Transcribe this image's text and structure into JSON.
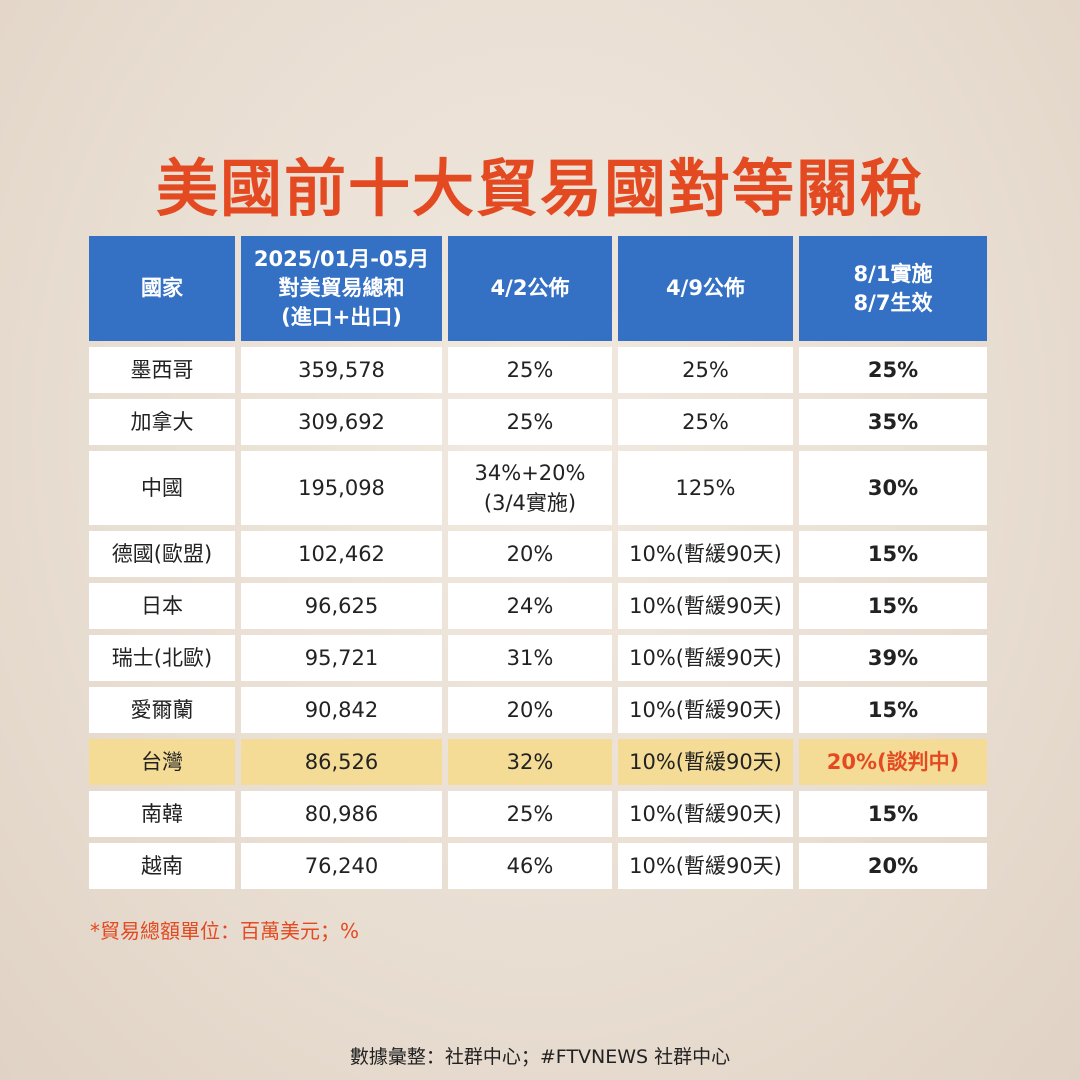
{
  "title": "美國前十大貿易國對等關稅",
  "chart_data": {
    "type": "table",
    "columns": [
      {
        "lines": [
          "國家"
        ]
      },
      {
        "lines": [
          "2025/01月-05月",
          "對美貿易總和",
          "(進口+出口)"
        ]
      },
      {
        "lines": [
          "4/2公佈"
        ]
      },
      {
        "lines": [
          "4/9公佈"
        ]
      },
      {
        "lines": [
          "8/1實施",
          "8/7生效"
        ]
      }
    ],
    "rows": [
      {
        "cells": [
          [
            "墨西哥"
          ],
          [
            "359,578"
          ],
          [
            "25%"
          ],
          [
            "25%"
          ],
          [
            "25%"
          ]
        ]
      },
      {
        "cells": [
          [
            "加拿大"
          ],
          [
            "309,692"
          ],
          [
            "25%"
          ],
          [
            "25%"
          ],
          [
            "35%"
          ]
        ]
      },
      {
        "cells": [
          [
            "中國"
          ],
          [
            "195,098"
          ],
          [
            "34%+20%",
            "(3/4實施)"
          ],
          [
            "125%"
          ],
          [
            "30%"
          ]
        ]
      },
      {
        "cells": [
          [
            "德國(歐盟)"
          ],
          [
            "102,462"
          ],
          [
            "20%"
          ],
          [
            "10%(暫緩90天)"
          ],
          [
            "15%"
          ]
        ]
      },
      {
        "cells": [
          [
            "日本"
          ],
          [
            "96,625"
          ],
          [
            "24%"
          ],
          [
            "10%(暫緩90天)"
          ],
          [
            "15%"
          ]
        ]
      },
      {
        "cells": [
          [
            "瑞士(北歐)"
          ],
          [
            "95,721"
          ],
          [
            "31%"
          ],
          [
            "10%(暫緩90天)"
          ],
          [
            "39%"
          ]
        ]
      },
      {
        "cells": [
          [
            "愛爾蘭"
          ],
          [
            "90,842"
          ],
          [
            "20%"
          ],
          [
            "10%(暫緩90天)"
          ],
          [
            "15%"
          ]
        ]
      },
      {
        "cells": [
          [
            "台灣"
          ],
          [
            "86,526"
          ],
          [
            "32%"
          ],
          [
            "10%(暫緩90天)"
          ],
          [
            "20%(談判中)"
          ]
        ],
        "highlight": true
      },
      {
        "cells": [
          [
            "南韓"
          ],
          [
            "80,986"
          ],
          [
            "25%"
          ],
          [
            "10%(暫緩90天)"
          ],
          [
            "15%"
          ]
        ]
      },
      {
        "cells": [
          [
            "越南"
          ],
          [
            "76,240"
          ],
          [
            "46%"
          ],
          [
            "10%(暫緩90天)"
          ],
          [
            "20%"
          ]
        ]
      }
    ]
  },
  "note": "*貿易總額單位：百萬美元；%",
  "source": "數據彙整：社群中心；#FTVNEWS 社群中心",
  "colors": {
    "title": "#e34a21",
    "header_bg": "#3470c4",
    "highlight_bg": "#f4dc96",
    "highlight_text": "#e34a21"
  }
}
